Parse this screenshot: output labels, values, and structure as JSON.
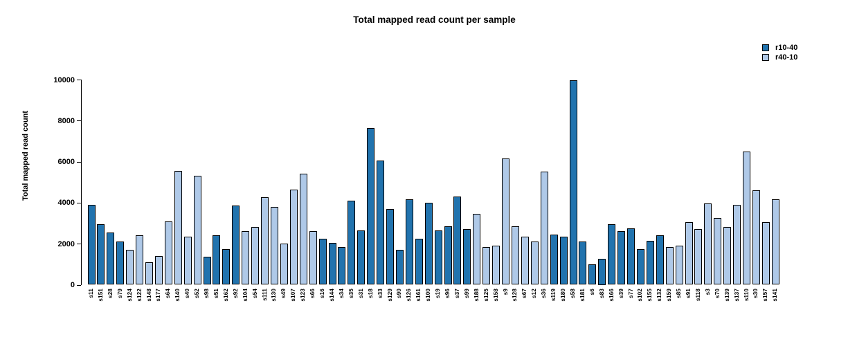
{
  "chart_data": {
    "type": "bar",
    "title": "Total mapped read count per sample",
    "xlabel": "",
    "ylabel": "Total mapped read count",
    "ylim": [
      0,
      10000
    ],
    "yticks": [
      0,
      2000,
      4000,
      6000,
      8000,
      10000
    ],
    "grid": false,
    "legend_position": "top-right",
    "legend": [
      {
        "label": "r10-40",
        "color": "#2173AE"
      },
      {
        "label": "r40-10",
        "color": "#AFC9E8"
      }
    ],
    "samples": [
      {
        "id": "s11",
        "value": 3900,
        "group": "r10-40"
      },
      {
        "id": "s151",
        "value": 2950,
        "group": "r10-40"
      },
      {
        "id": "s28",
        "value": 2550,
        "group": "r10-40"
      },
      {
        "id": "s79",
        "value": 2100,
        "group": "r10-40"
      },
      {
        "id": "s124",
        "value": 1700,
        "group": "r40-10"
      },
      {
        "id": "s122",
        "value": 2400,
        "group": "r40-10"
      },
      {
        "id": "s148",
        "value": 1100,
        "group": "r40-10"
      },
      {
        "id": "s177",
        "value": 1400,
        "group": "r40-10"
      },
      {
        "id": "s64",
        "value": 3100,
        "group": "r40-10"
      },
      {
        "id": "s140",
        "value": 5550,
        "group": "r40-10"
      },
      {
        "id": "s40",
        "value": 2350,
        "group": "r40-10"
      },
      {
        "id": "s52",
        "value": 5300,
        "group": "r40-10"
      },
      {
        "id": "s98",
        "value": 1350,
        "group": "r10-40"
      },
      {
        "id": "s51",
        "value": 2400,
        "group": "r10-40"
      },
      {
        "id": "s162",
        "value": 1750,
        "group": "r10-40"
      },
      {
        "id": "s92",
        "value": 3850,
        "group": "r10-40"
      },
      {
        "id": "s104",
        "value": 2600,
        "group": "r40-10"
      },
      {
        "id": "s54",
        "value": 2800,
        "group": "r40-10"
      },
      {
        "id": "s111",
        "value": 4250,
        "group": "r40-10"
      },
      {
        "id": "s130",
        "value": 3800,
        "group": "r40-10"
      },
      {
        "id": "s49",
        "value": 2000,
        "group": "r40-10"
      },
      {
        "id": "s107",
        "value": 4650,
        "group": "r40-10"
      },
      {
        "id": "s123",
        "value": 5400,
        "group": "r40-10"
      },
      {
        "id": "s66",
        "value": 2600,
        "group": "r40-10"
      },
      {
        "id": "s16",
        "value": 2250,
        "group": "r10-40"
      },
      {
        "id": "s144",
        "value": 2050,
        "group": "r10-40"
      },
      {
        "id": "s34",
        "value": 1850,
        "group": "r10-40"
      },
      {
        "id": "s35",
        "value": 4100,
        "group": "r10-40"
      },
      {
        "id": "s31",
        "value": 2650,
        "group": "r10-40"
      },
      {
        "id": "s18",
        "value": 7650,
        "group": "r10-40"
      },
      {
        "id": "s33",
        "value": 6050,
        "group": "r10-40"
      },
      {
        "id": "s129",
        "value": 3700,
        "group": "r10-40"
      },
      {
        "id": "s90",
        "value": 1700,
        "group": "r10-40"
      },
      {
        "id": "s126",
        "value": 4150,
        "group": "r10-40"
      },
      {
        "id": "s161",
        "value": 2250,
        "group": "r10-40"
      },
      {
        "id": "s100",
        "value": 4000,
        "group": "r10-40"
      },
      {
        "id": "s19",
        "value": 2650,
        "group": "r10-40"
      },
      {
        "id": "s96",
        "value": 2850,
        "group": "r10-40"
      },
      {
        "id": "s37",
        "value": 4300,
        "group": "r10-40"
      },
      {
        "id": "s99",
        "value": 2700,
        "group": "r10-40"
      },
      {
        "id": "s188",
        "value": 3450,
        "group": "r40-10"
      },
      {
        "id": "s125",
        "value": 1850,
        "group": "r40-10"
      },
      {
        "id": "s158",
        "value": 1900,
        "group": "r40-10"
      },
      {
        "id": "s9",
        "value": 6150,
        "group": "r40-10"
      },
      {
        "id": "s128",
        "value": 2850,
        "group": "r40-10"
      },
      {
        "id": "s67",
        "value": 2350,
        "group": "r40-10"
      },
      {
        "id": "s12",
        "value": 2100,
        "group": "r40-10"
      },
      {
        "id": "s36",
        "value": 5500,
        "group": "r40-10"
      },
      {
        "id": "s119",
        "value": 2450,
        "group": "r10-40"
      },
      {
        "id": "s180",
        "value": 2350,
        "group": "r10-40"
      },
      {
        "id": "s58",
        "value": 9950,
        "group": "r10-40"
      },
      {
        "id": "s181",
        "value": 2100,
        "group": "r10-40"
      },
      {
        "id": "s6",
        "value": 1000,
        "group": "r10-40"
      },
      {
        "id": "s83",
        "value": 1250,
        "group": "r10-40"
      },
      {
        "id": "s166",
        "value": 2950,
        "group": "r10-40"
      },
      {
        "id": "s39",
        "value": 2600,
        "group": "r10-40"
      },
      {
        "id": "s77",
        "value": 2750,
        "group": "r10-40"
      },
      {
        "id": "s102",
        "value": 1750,
        "group": "r10-40"
      },
      {
        "id": "s155",
        "value": 2150,
        "group": "r10-40"
      },
      {
        "id": "s132",
        "value": 2400,
        "group": "r10-40"
      },
      {
        "id": "s159",
        "value": 1850,
        "group": "r40-10"
      },
      {
        "id": "s85",
        "value": 1900,
        "group": "r40-10"
      },
      {
        "id": "s91",
        "value": 3050,
        "group": "r40-10"
      },
      {
        "id": "s118",
        "value": 2700,
        "group": "r40-10"
      },
      {
        "id": "s3",
        "value": 3950,
        "group": "r40-10"
      },
      {
        "id": "s70",
        "value": 3250,
        "group": "r40-10"
      },
      {
        "id": "s139",
        "value": 2800,
        "group": "r40-10"
      },
      {
        "id": "s137",
        "value": 3900,
        "group": "r40-10"
      },
      {
        "id": "s110",
        "value": 6500,
        "group": "r40-10"
      },
      {
        "id": "s30",
        "value": 4600,
        "group": "r40-10"
      },
      {
        "id": "s157",
        "value": 3050,
        "group": "r40-10"
      },
      {
        "id": "s141",
        "value": 4150,
        "group": "r40-10"
      }
    ]
  }
}
